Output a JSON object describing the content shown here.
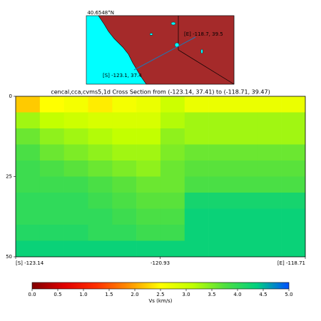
{
  "map": {
    "lat_label": "40.6548°N",
    "start_label": "[S] -123.1, 37.4",
    "end_label": "[E] -118.7, 39.5"
  },
  "chart_data": {
    "type": "heatmap",
    "title": "cencal,cca,cvms5,1d Cross Section from (-123.14, 37.41) to (-118.71, 39.47)",
    "x": [
      -122.955,
      -122.586,
      -122.217,
      -121.848,
      -121.479,
      -121.11,
      -120.741,
      -120.372,
      -120.003,
      -119.634,
      -119.265,
      -118.896
    ],
    "y": [
      2.5,
      7.5,
      12.5,
      17.5,
      22.5,
      27.5,
      32.5,
      37.5,
      42.5,
      47.5
    ],
    "values": [
      [
        2.2,
        2.5,
        2.6,
        2.4,
        2.6,
        2.7,
        3.0,
        2.7,
        2.7,
        2.7,
        2.7,
        2.7
      ],
      [
        3.3,
        3.1,
        3.0,
        2.9,
        2.9,
        2.9,
        3.2,
        3.3,
        3.3,
        3.3,
        3.3,
        3.3
      ],
      [
        3.6,
        3.4,
        3.3,
        3.2,
        3.1,
        3.1,
        3.4,
        3.3,
        3.3,
        3.3,
        3.3,
        3.3
      ],
      [
        3.8,
        3.6,
        3.5,
        3.4,
        3.3,
        3.3,
        3.5,
        3.6,
        3.6,
        3.6,
        3.6,
        3.6
      ],
      [
        3.9,
        3.8,
        3.7,
        3.6,
        3.5,
        3.4,
        3.6,
        3.7,
        3.7,
        3.7,
        3.7,
        3.7
      ],
      [
        3.9,
        3.9,
        3.9,
        3.8,
        3.7,
        3.6,
        3.6,
        3.8,
        3.8,
        3.8,
        3.8,
        3.8
      ],
      [
        4.0,
        4.0,
        4.0,
        3.9,
        3.8,
        3.7,
        3.7,
        4.2,
        4.2,
        4.2,
        4.2,
        4.2
      ],
      [
        4.0,
        4.0,
        4.0,
        4.0,
        3.9,
        3.8,
        3.8,
        4.3,
        4.3,
        4.3,
        4.3,
        4.3
      ],
      [
        4.1,
        4.1,
        4.1,
        4.0,
        4.0,
        3.9,
        3.9,
        4.3,
        4.3,
        4.3,
        4.3,
        4.3
      ],
      [
        4.3,
        4.3,
        4.3,
        4.3,
        4.3,
        4.3,
        4.3,
        4.3,
        4.3,
        4.3,
        4.3,
        4.3
      ]
    ],
    "xlim": [
      -123.14,
      -118.71
    ],
    "xticks": [
      {
        "value": -123.14,
        "label": "[S] -123.14"
      },
      {
        "value": -120.93,
        "label": "-120.93"
      },
      {
        "value": -118.71,
        "label": "[E] -118.71"
      }
    ],
    "ylim": [
      50,
      0
    ],
    "yticks": [
      0,
      25,
      50
    ],
    "colorbar": {
      "label": "Vs (km/s)",
      "lim": [
        0,
        5
      ],
      "colors": [
        "#800000",
        "#e00000",
        "#ff3000",
        "#ff9000",
        "#ffff00",
        "#c0ff00",
        "#50e040",
        "#00d080",
        "#0050ff"
      ],
      "ticks": [
        {
          "value": 0,
          "label": "0.0"
        },
        {
          "value": 0.5,
          "label": "0.5"
        },
        {
          "value": 1,
          "label": "1.0"
        },
        {
          "value": 1.5,
          "label": "1.5"
        },
        {
          "value": 2,
          "label": "2.0"
        },
        {
          "value": 2.5,
          "label": "2.5"
        },
        {
          "value": 3,
          "label": "3.0"
        },
        {
          "value": 3.5,
          "label": "3.5"
        },
        {
          "value": 4,
          "label": "4.0"
        },
        {
          "value": 4.5,
          "label": "4.5"
        },
        {
          "value": 5,
          "label": "5.0"
        }
      ]
    }
  }
}
